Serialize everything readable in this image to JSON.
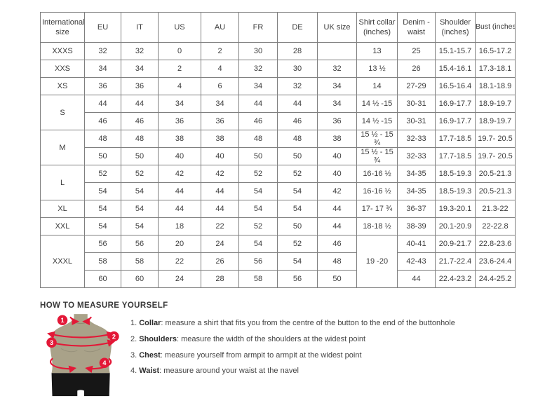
{
  "colors": {
    "accent_red": "#e31837",
    "table_border": "#7f7f7f",
    "text": "#3c3c3c",
    "mannequin_body": "#a9a289",
    "mannequin_shorts": "#161616"
  },
  "table": {
    "headers": [
      "International size",
      "EU",
      "IT",
      "US",
      "AU",
      "FR",
      "DE",
      "UK size",
      "Shirt collar (inches)",
      "Denim - waist",
      "Shoulder (inches)",
      "Bust (inches)"
    ],
    "rows": [
      [
        {
          "t": "XXXS"
        },
        {
          "t": "32"
        },
        {
          "t": "32"
        },
        {
          "t": "0"
        },
        {
          "t": "2"
        },
        {
          "t": "30"
        },
        {
          "t": "28"
        },
        {
          "t": ""
        },
        {
          "t": "13"
        },
        {
          "t": "25"
        },
        {
          "t": "15.1-15.7"
        },
        {
          "t": "16.5-17.2"
        }
      ],
      [
        {
          "t": "XXS"
        },
        {
          "t": "34"
        },
        {
          "t": "34"
        },
        {
          "t": "2"
        },
        {
          "t": "4"
        },
        {
          "t": "32"
        },
        {
          "t": "30"
        },
        {
          "t": "32"
        },
        {
          "t": "13 ½"
        },
        {
          "t": "26"
        },
        {
          "t": "15.4-16.1"
        },
        {
          "t": "17.3-18.1"
        }
      ],
      [
        {
          "t": "XS"
        },
        {
          "t": "36"
        },
        {
          "t": "36"
        },
        {
          "t": "4"
        },
        {
          "t": "6"
        },
        {
          "t": "34"
        },
        {
          "t": "32"
        },
        {
          "t": "34"
        },
        {
          "t": "14"
        },
        {
          "t": "27-29"
        },
        {
          "t": "16.5-16.4"
        },
        {
          "t": "18.1-18.9"
        }
      ],
      [
        {
          "t": "S",
          "rs": 2
        },
        {
          "t": "44"
        },
        {
          "t": "44"
        },
        {
          "t": "34"
        },
        {
          "t": "34"
        },
        {
          "t": "44"
        },
        {
          "t": "44"
        },
        {
          "t": "34"
        },
        {
          "t": "14 ½ -15"
        },
        {
          "t": "30-31"
        },
        {
          "t": "16.9-17.7"
        },
        {
          "t": "18.9-19.7"
        }
      ],
      [
        {
          "t": "46"
        },
        {
          "t": "46"
        },
        {
          "t": "36"
        },
        {
          "t": "36"
        },
        {
          "t": "46"
        },
        {
          "t": "46"
        },
        {
          "t": "36"
        },
        {
          "t": "14 ½ -15"
        },
        {
          "t": "30-31"
        },
        {
          "t": "16.9-17.7"
        },
        {
          "t": "18.9-19.7"
        }
      ],
      [
        {
          "t": "M",
          "rs": 2
        },
        {
          "t": "48"
        },
        {
          "t": "48"
        },
        {
          "t": "38"
        },
        {
          "t": "38"
        },
        {
          "t": "48"
        },
        {
          "t": "48"
        },
        {
          "t": "38"
        },
        {
          "t": "15 ½ - 15 ¾"
        },
        {
          "t": "32-33"
        },
        {
          "t": "17.7-18.5"
        },
        {
          "t": "19.7- 20.5"
        }
      ],
      [
        {
          "t": "50"
        },
        {
          "t": "50"
        },
        {
          "t": "40"
        },
        {
          "t": "40"
        },
        {
          "t": "50"
        },
        {
          "t": "50"
        },
        {
          "t": "40"
        },
        {
          "t": "15 ½ - 15 ¾"
        },
        {
          "t": "32-33"
        },
        {
          "t": "17.7-18.5"
        },
        {
          "t": "19.7- 20.5"
        }
      ],
      [
        {
          "t": "L",
          "rs": 2
        },
        {
          "t": "52"
        },
        {
          "t": "52"
        },
        {
          "t": "42"
        },
        {
          "t": "42"
        },
        {
          "t": "52"
        },
        {
          "t": "52"
        },
        {
          "t": "40"
        },
        {
          "t": "16-16 ½"
        },
        {
          "t": "34-35"
        },
        {
          "t": "18.5-19.3"
        },
        {
          "t": "20.5-21.3"
        }
      ],
      [
        {
          "t": "54"
        },
        {
          "t": "54"
        },
        {
          "t": "44"
        },
        {
          "t": "44"
        },
        {
          "t": "54"
        },
        {
          "t": "54"
        },
        {
          "t": "42"
        },
        {
          "t": "16-16 ½"
        },
        {
          "t": "34-35"
        },
        {
          "t": "18.5-19.3"
        },
        {
          "t": "20.5-21.3"
        }
      ],
      [
        {
          "t": "XL"
        },
        {
          "t": "54"
        },
        {
          "t": "54"
        },
        {
          "t": "44"
        },
        {
          "t": "44"
        },
        {
          "t": "54"
        },
        {
          "t": "54"
        },
        {
          "t": "44"
        },
        {
          "t": "17- 17 ¾"
        },
        {
          "t": "36-37"
        },
        {
          "t": "19.3-20.1"
        },
        {
          "t": "21.3-22"
        }
      ],
      [
        {
          "t": "XXL"
        },
        {
          "t": "54"
        },
        {
          "t": "54"
        },
        {
          "t": "18"
        },
        {
          "t": "22"
        },
        {
          "t": "52"
        },
        {
          "t": "50"
        },
        {
          "t": "44"
        },
        {
          "t": "18-18 ½"
        },
        {
          "t": "38-39"
        },
        {
          "t": "20.1-20.9"
        },
        {
          "t": "22-22.8"
        }
      ],
      [
        {
          "t": "XXXL",
          "rs": 3
        },
        {
          "t": "56"
        },
        {
          "t": "56"
        },
        {
          "t": "20"
        },
        {
          "t": "24"
        },
        {
          "t": "54"
        },
        {
          "t": "52"
        },
        {
          "t": "46"
        },
        {
          "t": "19 -20",
          "rs": 3
        },
        {
          "t": "40-41"
        },
        {
          "t": "20.9-21.7"
        },
        {
          "t": "22.8-23.6"
        }
      ],
      [
        {
          "t": "58"
        },
        {
          "t": "58"
        },
        {
          "t": "22"
        },
        {
          "t": "26"
        },
        {
          "t": "56"
        },
        {
          "t": "54"
        },
        {
          "t": "48"
        },
        {
          "t": "42-43"
        },
        {
          "t": "21.7-22.4"
        },
        {
          "t": "23.6-24.4"
        }
      ],
      [
        {
          "t": "60"
        },
        {
          "t": "60"
        },
        {
          "t": "24"
        },
        {
          "t": "28"
        },
        {
          "t": "58"
        },
        {
          "t": "56"
        },
        {
          "t": "50"
        },
        {
          "t": "44"
        },
        {
          "t": "22.4-23.2"
        },
        {
          "t": "24.4-25.2"
        }
      ]
    ]
  },
  "how_to_measure": {
    "title": "HOW TO MEASURE YOURSELF",
    "steps": [
      {
        "num": "1.",
        "label": "Collar",
        "desc": ": measure a shirt that fits you from the centre of the button to the end of the buttonhole"
      },
      {
        "num": "2.",
        "label": "Shoulders",
        "desc": ": measure the width of the shoulders at the widest point"
      },
      {
        "num": "3.",
        "label": "Chest",
        "desc": ": measure yourself from armpit to armpit at the widest point"
      },
      {
        "num": "4.",
        "label": "Waist",
        "desc": ": measure around your waist at the navel"
      }
    ]
  },
  "figure": {
    "badges": [
      "1",
      "2",
      "3",
      "4"
    ]
  }
}
